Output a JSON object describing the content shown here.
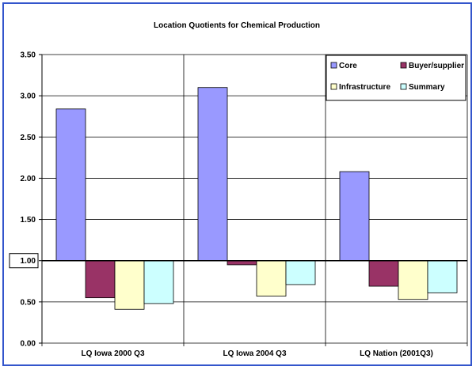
{
  "chart_data": {
    "type": "bar",
    "title": "Location Quotients for Chemical Production",
    "xlabel": "",
    "ylabel": "",
    "categories": [
      "LQ Iowa 2000 Q3",
      "LQ Iowa 2004 Q3",
      "LQ Nation (2001Q3)"
    ],
    "ylim": [
      0,
      3.5
    ],
    "yticks": [
      "0.00",
      "0.50",
      "1.00",
      "1.50",
      "2.00",
      "2.50",
      "3.00",
      "3.50"
    ],
    "baseline": 1.0,
    "grid": true,
    "legend_position": "top-right",
    "series": [
      {
        "name": "Core",
        "color": "#9999ff",
        "values": [
          2.84,
          3.1,
          2.08
        ]
      },
      {
        "name": "Buyer/supplier",
        "color": "#993366",
        "values": [
          0.55,
          0.95,
          0.69
        ]
      },
      {
        "name": "Infrastructure",
        "color": "#ffffcc",
        "values": [
          0.41,
          0.57,
          0.53
        ]
      },
      {
        "name": "Summary",
        "color": "#ccffff",
        "values": [
          0.48,
          0.71,
          0.61
        ]
      }
    ]
  }
}
